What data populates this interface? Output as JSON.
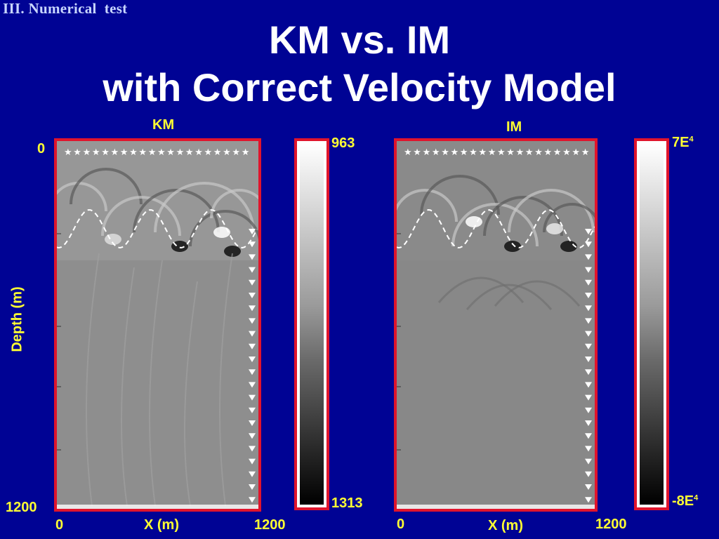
{
  "section_label": "III. Numerical  test",
  "title_line1": "KM vs. IM",
  "title_line2": "with Correct Velocity Model",
  "y_axis": {
    "label": "Depth (m)",
    "top": "0",
    "bottom": "1200"
  },
  "panels": [
    {
      "title": "KM",
      "x_label": "X (m)",
      "x_min": "0",
      "x_max": "1200",
      "colorbar": {
        "max_label": "963",
        "min_label": "1313"
      }
    },
    {
      "title": "IM",
      "x_label": "X (m)",
      "x_min": "0",
      "x_max": "1200",
      "colorbar": {
        "max_base": "7E",
        "max_exp": "4",
        "min_base": "-8E",
        "min_exp": "4"
      }
    }
  ],
  "colors": {
    "background": "#000394",
    "frame": "#e0142c",
    "label": "#ffff33",
    "title": "#ffffff"
  }
}
